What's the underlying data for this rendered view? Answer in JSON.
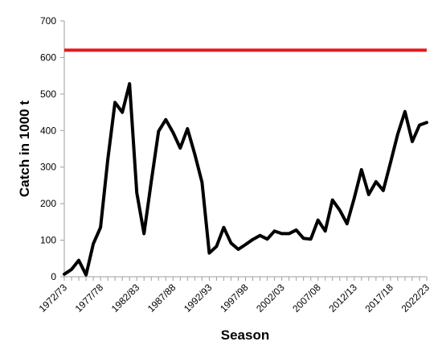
{
  "chart_data": {
    "type": "line",
    "title": "",
    "xlabel": "Season",
    "ylabel": "Catch in 1000 t",
    "ylim": [
      0,
      700
    ],
    "y_ticks": [
      0,
      100,
      200,
      300,
      400,
      500,
      600,
      700
    ],
    "x_tick_labels": [
      "1972/73",
      "1977/78",
      "1982/83",
      "1987/88",
      "1992/93",
      "1997/98",
      "2002/03",
      "2007/08",
      "2012/13",
      "2017/18",
      "2022/23"
    ],
    "x": [
      "1972/73",
      "1973/74",
      "1974/75",
      "1975/76",
      "1976/77",
      "1977/78",
      "1978/79",
      "1979/80",
      "1980/81",
      "1981/82",
      "1982/83",
      "1983/84",
      "1984/85",
      "1985/86",
      "1986/87",
      "1987/88",
      "1988/89",
      "1989/90",
      "1990/91",
      "1991/92",
      "1992/93",
      "1993/94",
      "1994/95",
      "1995/96",
      "1996/97",
      "1997/98",
      "1998/99",
      "1999/00",
      "2000/01",
      "2001/02",
      "2002/03",
      "2003/04",
      "2004/05",
      "2005/06",
      "2006/07",
      "2007/08",
      "2008/09",
      "2009/10",
      "2010/11",
      "2011/12",
      "2012/13",
      "2013/14",
      "2014/15",
      "2015/16",
      "2016/17",
      "2017/18",
      "2018/19",
      "2019/20",
      "2020/21",
      "2021/22",
      "2022/23"
    ],
    "series": [
      {
        "color": "#000000",
        "values": [
          7,
          20,
          45,
          5,
          90,
          135,
          320,
          477,
          450,
          528,
          230,
          118,
          260,
          398,
          430,
          395,
          352,
          405,
          335,
          258,
          65,
          83,
          135,
          92,
          75,
          88,
          102,
          113,
          103,
          125,
          118,
          118,
          128,
          105,
          103,
          155,
          125,
          210,
          182,
          145,
          215,
          293,
          225,
          260,
          236,
          312,
          390,
          452,
          370,
          415,
          422
        ]
      }
    ],
    "reference_line": {
      "value": 620,
      "color": "#e31a1c"
    },
    "grid": false,
    "legend": "none"
  }
}
